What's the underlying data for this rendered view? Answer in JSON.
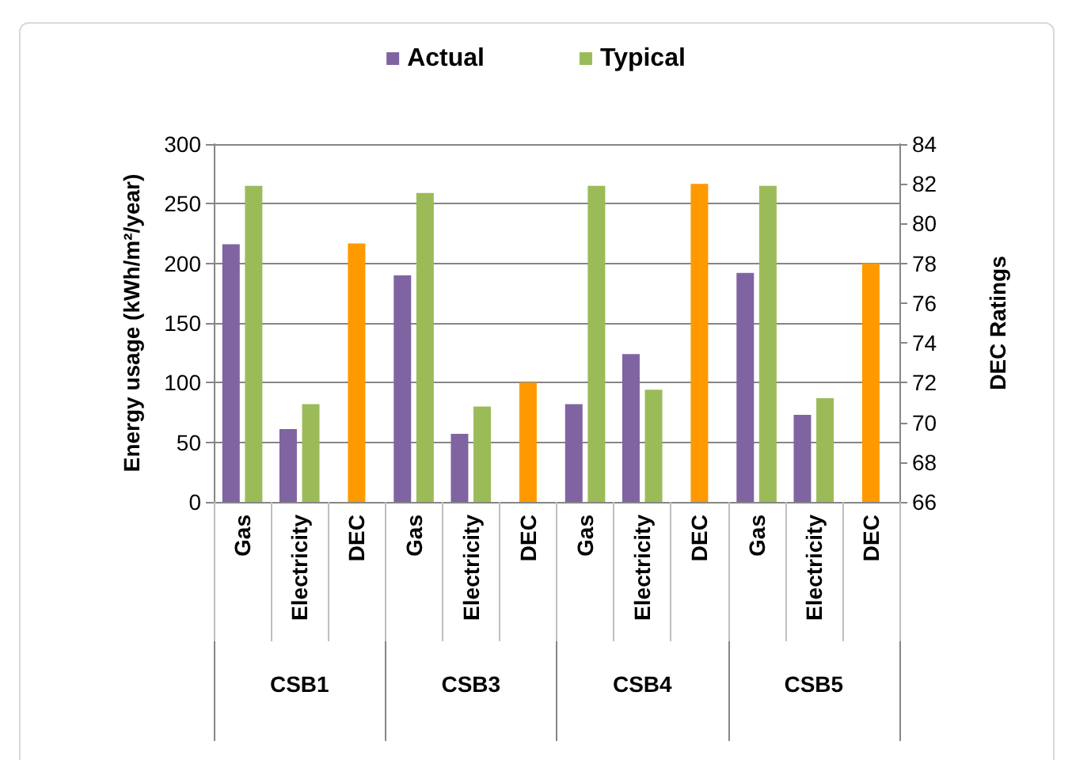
{
  "chart_data": {
    "type": "bar",
    "categories": [
      "Gas",
      "Electricity",
      "DEC",
      "Gas",
      "Electricity",
      "DEC",
      "Gas",
      "Electricity",
      "DEC",
      "Gas",
      "Electricity",
      "DEC"
    ],
    "annotations": [
      "CSB1",
      "CSB3",
      "CSB4",
      "CSB5"
    ],
    "ylabel": "Energy usage (kWh/m²/year)",
    "y2label": "DEC Ratings",
    "series": [
      {
        "name": "Actual",
        "color": "#8064a2",
        "values": [
          216,
          61,
          null,
          190,
          57,
          null,
          82,
          124,
          null,
          192,
          73,
          null
        ]
      },
      {
        "name": "Typical",
        "color": "#9bbb59",
        "values": [
          265,
          82,
          null,
          259,
          80,
          null,
          265,
          94,
          null,
          265,
          87,
          null
        ]
      },
      {
        "color": "#ff9900",
        "axis": "y2",
        "values": [
          null,
          null,
          79,
          null,
          null,
          72,
          null,
          null,
          82,
          null,
          null,
          78
        ]
      }
    ],
    "ylim": [
      0,
      300
    ],
    "yticks": [
      0,
      50,
      100,
      150,
      200,
      250,
      300
    ],
    "y2lim": [
      66,
      84
    ],
    "y2ticks": [
      66,
      68,
      70,
      72,
      74,
      76,
      78,
      80,
      82,
      84
    ],
    "grid": "y",
    "legend": "top"
  }
}
